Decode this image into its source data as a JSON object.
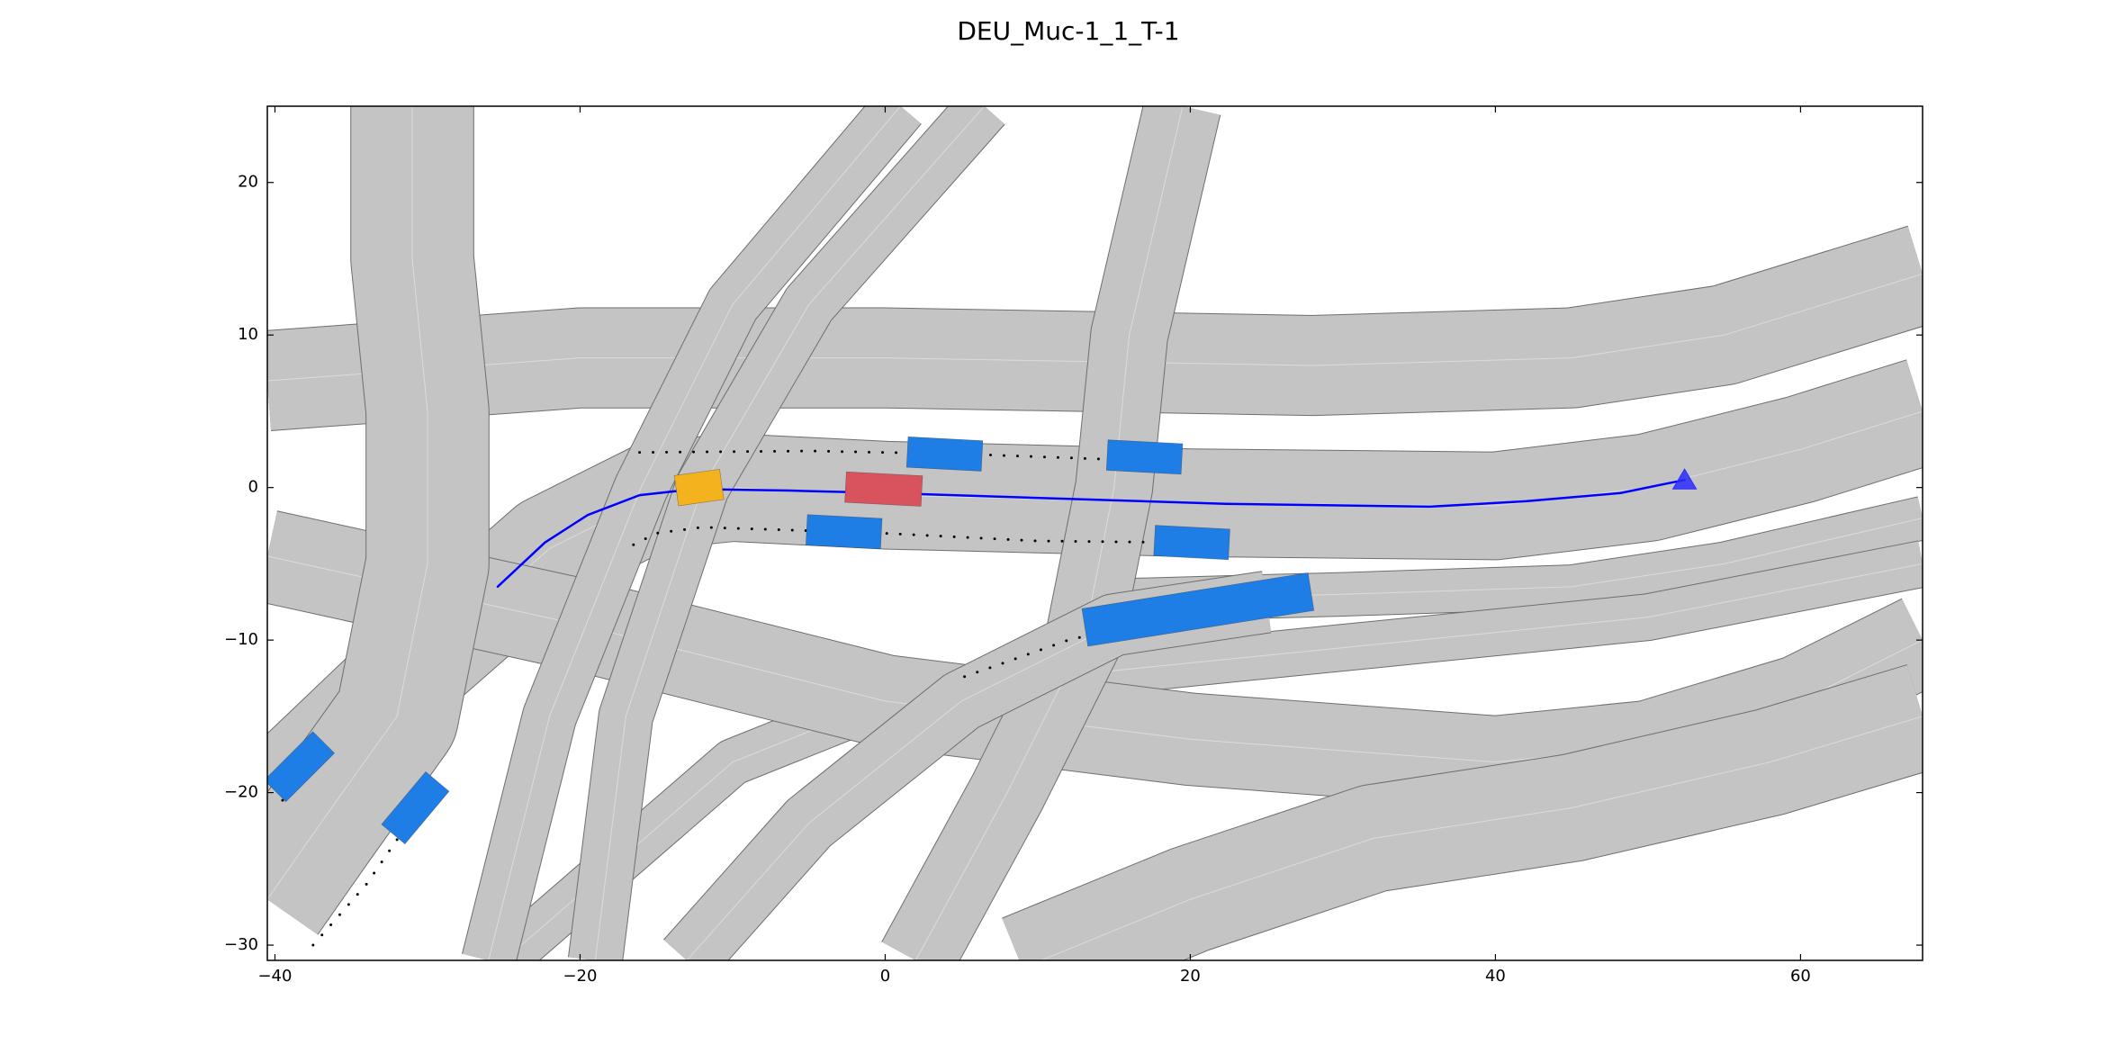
{
  "chart_data": {
    "type": "map",
    "title": "DEU_Muc-1_1_T-1",
    "xlim": [
      -40.5,
      68
    ],
    "ylim": [
      -31,
      25
    ],
    "xticks": [
      {
        "value": -40,
        "label": "−40"
      },
      {
        "value": -20,
        "label": "−20"
      },
      0,
      20,
      40,
      60
    ],
    "yticks": [
      {
        "value": -30,
        "label": "−30"
      },
      {
        "value": -20,
        "label": "−20"
      },
      {
        "value": -10,
        "label": "−10"
      },
      0,
      10,
      20
    ],
    "road_color": "#c4c4c4",
    "roads": [
      {
        "x": [
          -40.5,
          -20,
          0,
          28,
          45,
          55,
          68
        ],
        "y": [
          7,
          8.5,
          8.5,
          8,
          8.5,
          10,
          14
        ],
        "width": 6.5
      },
      {
        "x": [
          -40.5,
          -30,
          -22,
          -15,
          -10,
          0,
          20,
          40,
          50,
          60,
          68
        ],
        "y": [
          -21,
          -11,
          -4,
          -0.5,
          0,
          -0.5,
          -1,
          -1.2,
          0,
          2.5,
          5
        ],
        "width": 7
      },
      {
        "x": [
          12,
          30,
          45,
          55,
          68
        ],
        "y": [
          -7.5,
          -7,
          -6.5,
          -5,
          -2
        ],
        "width": 2.8
      },
      {
        "x": [
          68,
          50,
          30,
          15,
          0,
          -10,
          -25
        ],
        "y": [
          -5,
          -8.5,
          -10.5,
          -12,
          -14,
          -18,
          -31
        ],
        "width": 3
      },
      {
        "x": [
          -40.5,
          -20,
          0,
          20,
          40,
          50,
          60,
          68
        ],
        "y": [
          -4.5,
          -9,
          -14,
          -16.5,
          -18,
          -17,
          -14,
          -10
        ],
        "width": 6
      },
      {
        "x": [
          9,
          20,
          32,
          45,
          58,
          68
        ],
        "y": [
          -31.5,
          -27,
          -23,
          -21,
          -18,
          -15
        ],
        "width": 7
      },
      {
        "x": [
          -31,
          -31,
          -30,
          -30,
          -32,
          -37,
          -40.5
        ],
        "y": [
          25,
          15,
          5,
          -5,
          -15,
          -22,
          -27
        ],
        "width": 8
      },
      {
        "x": [
          1,
          -10,
          -16,
          -22,
          -26
        ],
        "y": [
          25,
          12,
          0,
          -15,
          -31
        ],
        "width": 3.5
      },
      {
        "x": [
          6.5,
          -5,
          -12,
          -17,
          -19
        ],
        "y": [
          25,
          12,
          0,
          -15,
          -31
        ],
        "width": 3.5
      },
      {
        "x": [
          19.5,
          16,
          15,
          13,
          8,
          2
        ],
        "y": [
          25,
          10,
          0,
          -10,
          -20,
          -31
        ],
        "width": 5
      },
      {
        "x": [
          -13,
          -5,
          5,
          15,
          25
        ],
        "y": [
          -31,
          -22,
          -14,
          -9,
          -7.5
        ],
        "width": 4
      }
    ],
    "trajectories": [
      {
        "x": [
          -25.4,
          -22.3,
          -19.5,
          -16.1,
          -12.5,
          -6.25,
          0,
          22.3,
          35.7,
          42,
          48.2,
          52.4
        ],
        "y": [
          -6.5,
          -3.6,
          -1.8,
          -0.5,
          -0.1,
          -0.2,
          -0.36,
          -1.07,
          -1.25,
          -0.9,
          -0.36,
          0.5
        ],
        "color": "#0000ff",
        "style": "solid"
      },
      {
        "x": [
          -16.1,
          -5,
          5,
          16.1
        ],
        "y": [
          2.3,
          2.4,
          2.2,
          1.8
        ],
        "color": "#000000",
        "style": "dotted"
      },
      {
        "x": [
          -16.5,
          -15,
          -12,
          0,
          10,
          19
        ],
        "y": [
          -3.75,
          -3,
          -2.6,
          -3,
          -3.5,
          -3.6
        ],
        "color": "#000000",
        "style": "dotted"
      },
      {
        "x": [
          5.2,
          12,
          20.1
        ],
        "y": [
          -12.4,
          -10,
          -8.1
        ],
        "color": "#000000",
        "style": "dotted"
      },
      {
        "x": [
          -37.5,
          -34,
          -31.25
        ],
        "y": [
          -30,
          -26,
          -22
        ],
        "color": "#000000",
        "style": "dotted"
      },
      {
        "x": [
          -39.5,
          -38.4
        ],
        "y": [
          -20.5,
          -19
        ],
        "color": "#000000",
        "style": "dotted"
      }
    ],
    "vehicles": [
      {
        "x": 3.9,
        "y": 2.2,
        "length": 4.9,
        "width": 2,
        "angle": -3,
        "color": "#1e7ee6"
      },
      {
        "x": 17,
        "y": 2.0,
        "length": 4.9,
        "width": 2,
        "angle": -3,
        "color": "#1e7ee6"
      },
      {
        "x": -2.7,
        "y": -2.9,
        "length": 4.9,
        "width": 2,
        "angle": -3,
        "color": "#1e7ee6"
      },
      {
        "x": 20.1,
        "y": -3.6,
        "length": 4.9,
        "width": 2,
        "angle": -3,
        "color": "#1e7ee6"
      },
      {
        "x": 20.5,
        "y": -8,
        "length": 15,
        "width": 2.5,
        "angle": 9,
        "color": "#1e7ee6"
      },
      {
        "x": -38.4,
        "y": -18.3,
        "length": 4.5,
        "width": 2,
        "angle": 45,
        "color": "#1e7ee6"
      },
      {
        "x": -30.8,
        "y": -21,
        "length": 4.5,
        "width": 2,
        "angle": 50,
        "color": "#1e7ee6"
      },
      {
        "x": -0.1,
        "y": -0.1,
        "length": 5,
        "width": 2,
        "angle": -3,
        "color": "#d9535e"
      },
      {
        "x": -12.2,
        "y": 0,
        "length": 3,
        "width": 2,
        "angle": 8,
        "color": "#f4b31c"
      }
    ],
    "goal": {
      "x": 52.4,
      "y": 0.5,
      "color": "#2c2cff"
    }
  }
}
